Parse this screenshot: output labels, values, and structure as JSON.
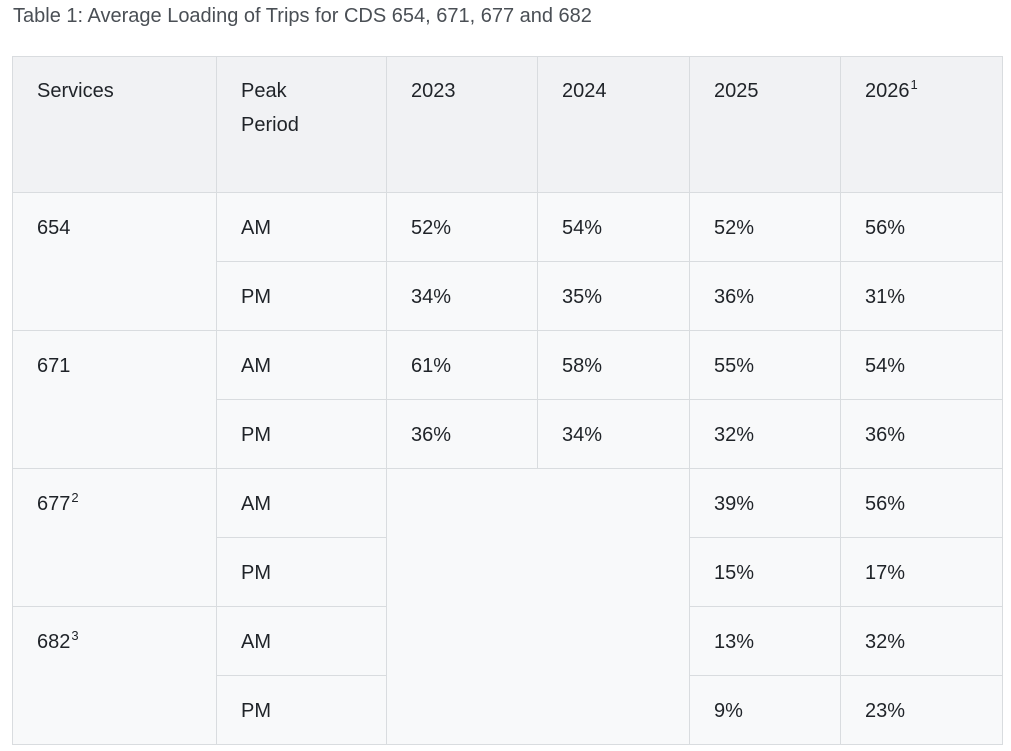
{
  "caption": "Table 1: Average Loading of Trips for CDS 654, 671, 677 and 682",
  "table": {
    "headers": [
      {
        "text": "Services",
        "sup": ""
      },
      {
        "text": "Peak Period",
        "sup": ""
      },
      {
        "text": "2023",
        "sup": ""
      },
      {
        "text": "2024",
        "sup": ""
      },
      {
        "text": "2025",
        "sup": ""
      },
      {
        "text": "2026",
        "sup": "1"
      }
    ],
    "services": [
      {
        "name": "654",
        "sup": "",
        "periods": [
          {
            "period": "AM",
            "values": [
              "52%",
              "54%",
              "52%",
              "56%"
            ]
          },
          {
            "period": "PM",
            "values": [
              "34%",
              "35%",
              "36%",
              "31%"
            ]
          }
        ]
      },
      {
        "name": "671",
        "sup": "",
        "periods": [
          {
            "period": "AM",
            "values": [
              "61%",
              "58%",
              "55%",
              "54%"
            ]
          },
          {
            "period": "PM",
            "values": [
              "36%",
              "34%",
              "32%",
              "36%"
            ]
          }
        ]
      },
      {
        "name": "677",
        "sup": "2",
        "periods": [
          {
            "period": "AM",
            "values": [
              "",
              "",
              "39%",
              "56%"
            ]
          },
          {
            "period": "PM",
            "values": [
              "",
              "",
              "15%",
              "17%"
            ]
          }
        ]
      },
      {
        "name": "682",
        "sup": "3",
        "periods": [
          {
            "period": "AM",
            "values": [
              "",
              "",
              "13%",
              "32%"
            ]
          },
          {
            "period": "PM",
            "values": [
              "",
              "",
              "9%",
              "23%"
            ]
          }
        ]
      }
    ]
  }
}
